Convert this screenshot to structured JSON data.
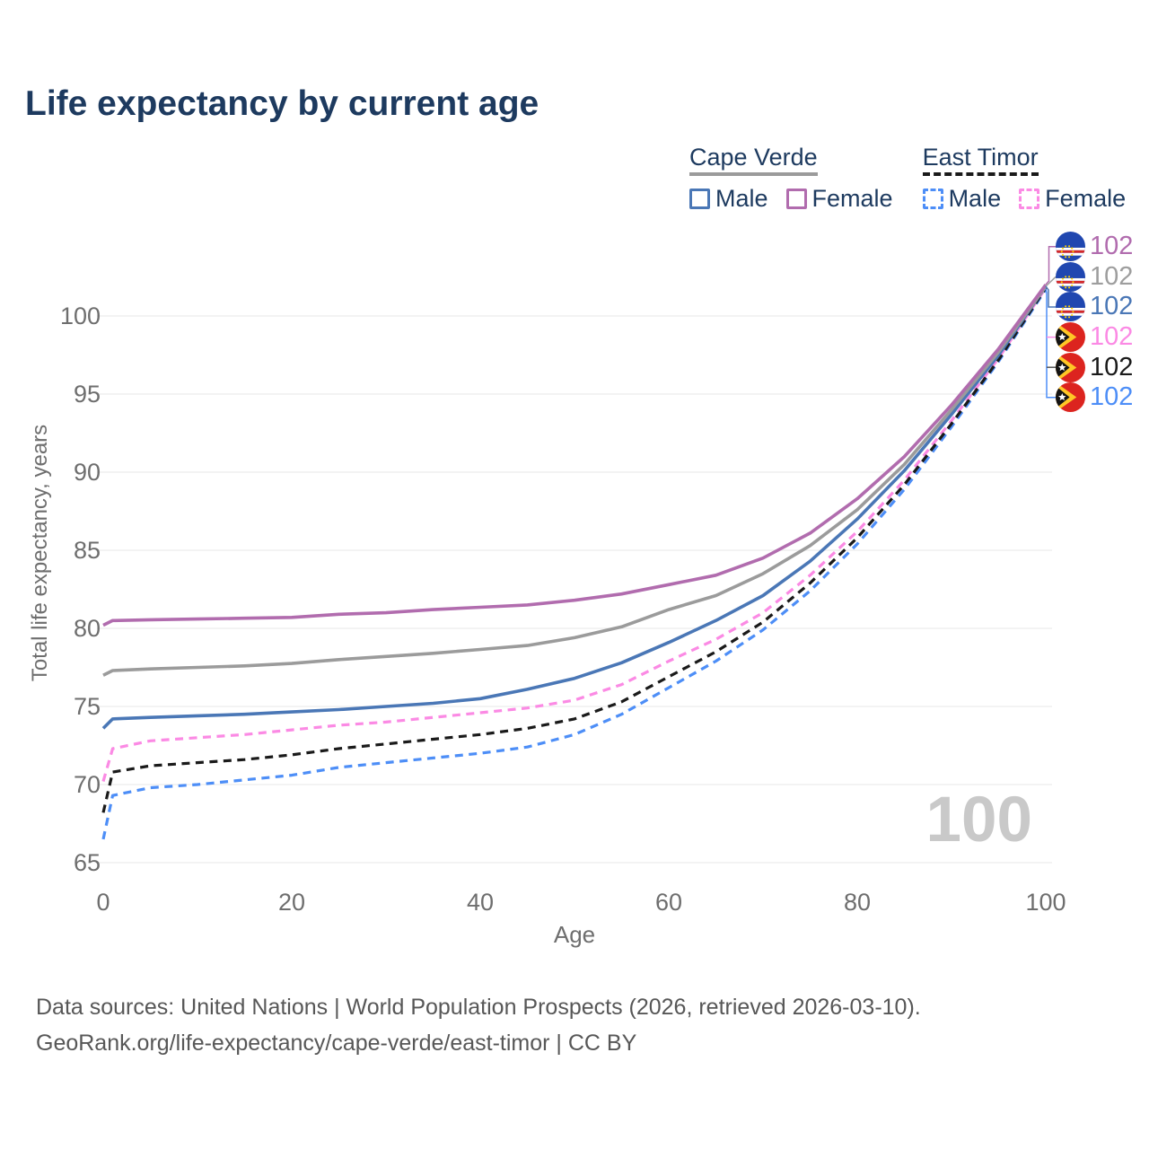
{
  "title": "Life expectancy by current age",
  "legend": {
    "groups": [
      {
        "title": "Cape Verde",
        "line_style": "solid",
        "line_color": "#9b9b9b",
        "items": [
          {
            "label": "Male",
            "swatch_color": "#4a77b6",
            "swatch_style": "solid"
          },
          {
            "label": "Female",
            "swatch_color": "#b16cae",
            "swatch_style": "solid"
          }
        ]
      },
      {
        "title": "East Timor",
        "line_style": "dashed",
        "line_color": "#1a1a1a",
        "items": [
          {
            "label": "Male",
            "swatch_color": "#4d8ef7",
            "swatch_style": "dashed"
          },
          {
            "label": "Female",
            "swatch_color": "#fb8ae4",
            "swatch_style": "dashed"
          }
        ]
      }
    ]
  },
  "axes": {
    "xlabel": "Age",
    "ylabel": "Total life expectancy, years"
  },
  "watermark_age": "100",
  "end_labels": [
    {
      "flag": "cape-verde",
      "value": "102",
      "color": "#b16cae"
    },
    {
      "flag": "cape-verde",
      "value": "102",
      "color": "#9e9e9e"
    },
    {
      "flag": "cape-verde",
      "value": "102",
      "color": "#4a77b6"
    },
    {
      "flag": "east-timor",
      "value": "102",
      "color": "#fb8ae4"
    },
    {
      "flag": "east-timor",
      "value": "102",
      "color": "#1a1a1a"
    },
    {
      "flag": "east-timor",
      "value": "102",
      "color": "#4d8ef7"
    }
  ],
  "footer": {
    "line1": "Data sources: United Nations | World Population Prospects (2026, retrieved 2026-03-10).",
    "line2": "GeoRank.org/life-expectancy/cape-verde/east-timor | CC BY"
  },
  "chart_data": {
    "type": "line",
    "title": "Life expectancy by current age",
    "xlabel": "Age",
    "ylabel": "Total life expectancy, years",
    "xlim": [
      0,
      100
    ],
    "ylim": [
      63.5,
      103
    ],
    "xticks": [
      0,
      20,
      40,
      60,
      80,
      100
    ],
    "yticks": [
      65,
      70,
      75,
      80,
      85,
      90,
      95,
      100
    ],
    "grid": "horizontal",
    "legend_position": "top-right",
    "x": [
      0,
      1,
      5,
      10,
      15,
      20,
      25,
      30,
      35,
      40,
      45,
      50,
      55,
      60,
      65,
      70,
      75,
      80,
      85,
      90,
      95,
      100
    ],
    "series": [
      {
        "name": "Cape Verde Female",
        "country": "Cape Verde",
        "sex": "Female",
        "color": "#b16cae",
        "dash": false,
        "values": [
          80.2,
          80.5,
          80.55,
          80.6,
          80.65,
          80.7,
          80.9,
          81.0,
          81.2,
          81.35,
          81.5,
          81.8,
          82.2,
          82.8,
          83.4,
          84.5,
          86.1,
          88.3,
          91.0,
          94.3,
          97.9,
          102.0
        ]
      },
      {
        "name": "Cape Verde Both sexes",
        "country": "Cape Verde",
        "sex": "Both",
        "color": "#9b9b9b",
        "dash": false,
        "values": [
          77.0,
          77.3,
          77.4,
          77.5,
          77.6,
          77.75,
          78.0,
          78.2,
          78.4,
          78.65,
          78.9,
          79.4,
          80.1,
          81.2,
          82.1,
          83.5,
          85.3,
          87.6,
          90.5,
          94.0,
          97.7,
          101.9
        ]
      },
      {
        "name": "Cape Verde Male",
        "country": "Cape Verde",
        "sex": "Male",
        "color": "#4a77b6",
        "dash": false,
        "values": [
          73.6,
          74.2,
          74.3,
          74.4,
          74.5,
          74.65,
          74.8,
          75.0,
          75.2,
          75.5,
          76.1,
          76.8,
          77.8,
          79.1,
          80.5,
          82.1,
          84.3,
          87.0,
          90.1,
          93.7,
          97.5,
          101.9
        ]
      },
      {
        "name": "East Timor Female",
        "country": "East Timor",
        "sex": "Female",
        "color": "#fb8ae4",
        "dash": true,
        "values": [
          70.2,
          72.3,
          72.8,
          73.0,
          73.2,
          73.5,
          73.8,
          74.0,
          74.3,
          74.6,
          74.9,
          75.4,
          76.4,
          77.9,
          79.3,
          81.0,
          83.4,
          86.2,
          89.5,
          93.3,
          97.3,
          101.8
        ]
      },
      {
        "name": "East Timor Both sexes",
        "country": "East Timor",
        "sex": "Both",
        "color": "#1a1a1a",
        "dash": true,
        "values": [
          68.2,
          70.8,
          71.2,
          71.4,
          71.6,
          71.9,
          72.3,
          72.6,
          72.9,
          73.2,
          73.6,
          74.2,
          75.3,
          76.9,
          78.5,
          80.4,
          82.9,
          85.8,
          89.2,
          93.1,
          97.2,
          101.8
        ]
      },
      {
        "name": "East Timor Male",
        "country": "East Timor",
        "sex": "Male",
        "color": "#4d8ef7",
        "dash": true,
        "values": [
          66.5,
          69.3,
          69.8,
          70.0,
          70.3,
          70.6,
          71.1,
          71.4,
          71.7,
          72.0,
          72.4,
          73.2,
          74.5,
          76.2,
          77.9,
          79.9,
          82.4,
          85.4,
          88.9,
          92.9,
          97.1,
          101.7
        ]
      }
    ]
  }
}
